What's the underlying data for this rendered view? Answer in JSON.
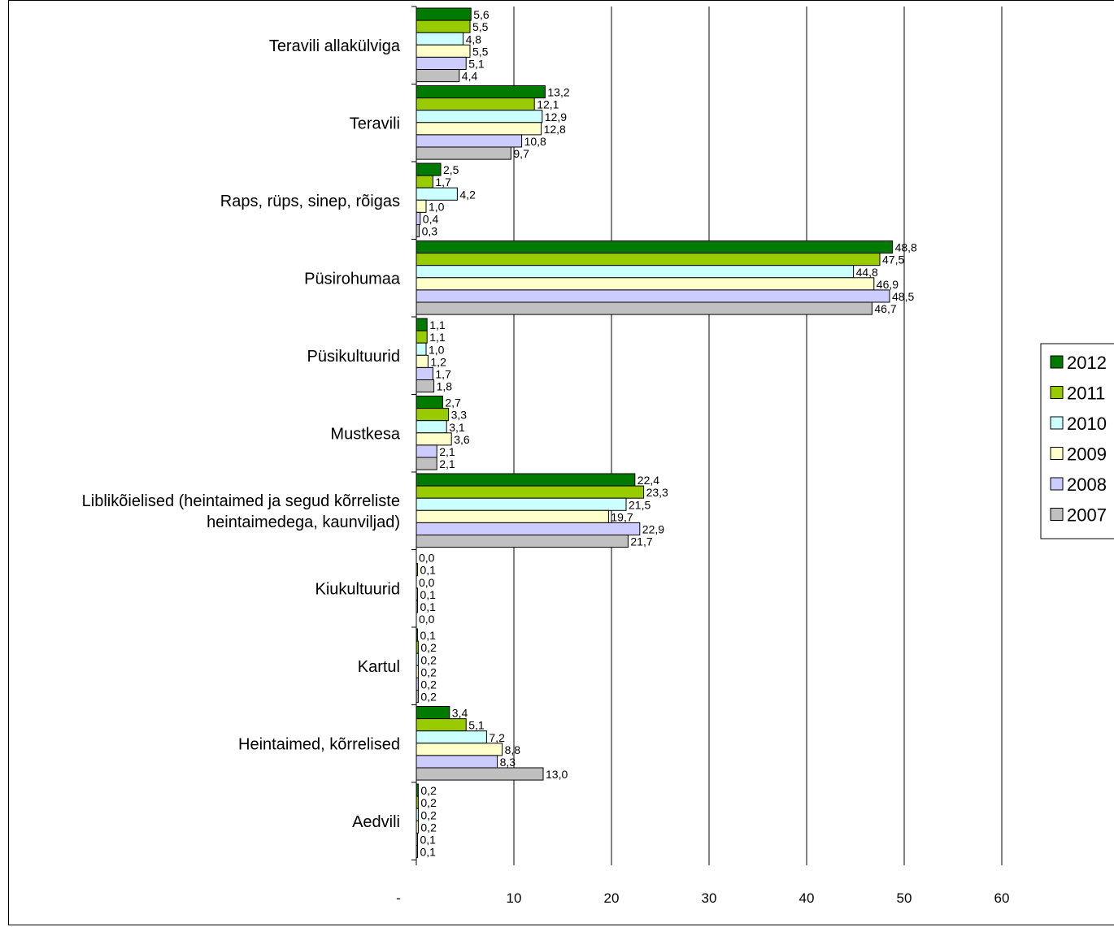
{
  "chart_data": {
    "type": "bar",
    "orientation": "horizontal",
    "categories": [
      "Teravili allakülviga",
      "Teravili",
      "Raps, rüps, sinep, rõigas",
      "Püsirohumaa",
      "Püsikultuurid",
      "Mustkesa",
      "Liblikõielised (heintaimed ja segud kõrreliste heintaimedega, kaunviljad)",
      "Kiukultuurid",
      "Kartul",
      "Heintaimed, kõrrelised",
      "Aedvili"
    ],
    "category_lines": [
      [
        "Teravili allakülviga"
      ],
      [
        "Teravili"
      ],
      [
        "Raps, rüps, sinep, rõigas"
      ],
      [
        "Püsirohumaa"
      ],
      [
        "Püsikultuurid"
      ],
      [
        "Mustkesa"
      ],
      [
        "Liblikõielised (heintaimed ja segud kõrreliste",
        "heintaimedega, kaunviljad)"
      ],
      [
        "Kiukultuurid"
      ],
      [
        "Kartul"
      ],
      [
        "Heintaimed, kõrrelised"
      ],
      [
        "Aedvili"
      ]
    ],
    "series": [
      {
        "name": "2012",
        "color": "#007a00",
        "values": [
          5.6,
          13.2,
          2.5,
          48.8,
          1.1,
          2.7,
          22.4,
          0.0,
          0.1,
          3.4,
          0.2
        ],
        "labels": [
          "5,6",
          "13,2",
          "2,5",
          "48,8",
          "1,1",
          "2,7",
          "22,4",
          "0,0",
          "0,1",
          "3,4",
          "0,2"
        ]
      },
      {
        "name": "2011",
        "color": "#99cc00",
        "values": [
          5.5,
          12.1,
          1.7,
          47.5,
          1.1,
          3.3,
          23.3,
          0.1,
          0.2,
          5.1,
          0.2
        ],
        "labels": [
          "5,5",
          "12,1",
          "1,7",
          "47,5",
          "1,1",
          "3,3",
          "23,3",
          "0,1",
          "0,2",
          "5,1",
          "0,2"
        ]
      },
      {
        "name": "2010",
        "color": "#ccffff",
        "values": [
          4.8,
          12.9,
          4.2,
          44.8,
          1.0,
          3.1,
          21.5,
          0.0,
          0.2,
          7.2,
          0.2
        ],
        "labels": [
          "4,8",
          "12,9",
          "4,2",
          "44,8",
          "1,0",
          "3,1",
          "21,5",
          "0,0",
          "0,2",
          "7,2",
          "0,2"
        ]
      },
      {
        "name": "2009",
        "color": "#ffffcc",
        "values": [
          5.5,
          12.8,
          1.0,
          46.9,
          1.2,
          3.6,
          19.7,
          0.1,
          0.2,
          8.8,
          0.2
        ],
        "labels": [
          "5,5",
          "12,8",
          "1,0",
          "46,9",
          "1,2",
          "3,6",
          "19,7",
          "0,1",
          "0,2",
          "8,8",
          "0,2"
        ]
      },
      {
        "name": "2008",
        "color": "#ccccff",
        "values": [
          5.1,
          10.8,
          0.4,
          48.5,
          1.7,
          2.1,
          22.9,
          0.1,
          0.2,
          8.3,
          0.1
        ],
        "labels": [
          "5,1",
          "10,8",
          "0,4",
          "48,5",
          "1,7",
          "2,1",
          "22,9",
          "0,1",
          "0,2",
          "8,3",
          "0,1"
        ]
      },
      {
        "name": "2007",
        "color": "#c0c0c0",
        "values": [
          4.4,
          9.7,
          0.3,
          46.7,
          1.8,
          2.1,
          21.7,
          0.0,
          0.2,
          13.0,
          0.1
        ],
        "labels": [
          "4,4",
          "9,7",
          "0,3",
          "46,7",
          "1,8",
          "2,1",
          "21,7",
          "0,0",
          "0,2",
          "13,0",
          "0,1"
        ]
      }
    ],
    "xlim": [
      0,
      60
    ],
    "xticks": [
      0,
      10,
      20,
      30,
      40,
      50,
      60
    ],
    "xtick_labels": [
      "-",
      "10",
      "20",
      "30",
      "40",
      "50",
      "60"
    ],
    "title": "",
    "xlabel": "",
    "ylabel": "",
    "grid": "vertical",
    "legend": "right"
  }
}
